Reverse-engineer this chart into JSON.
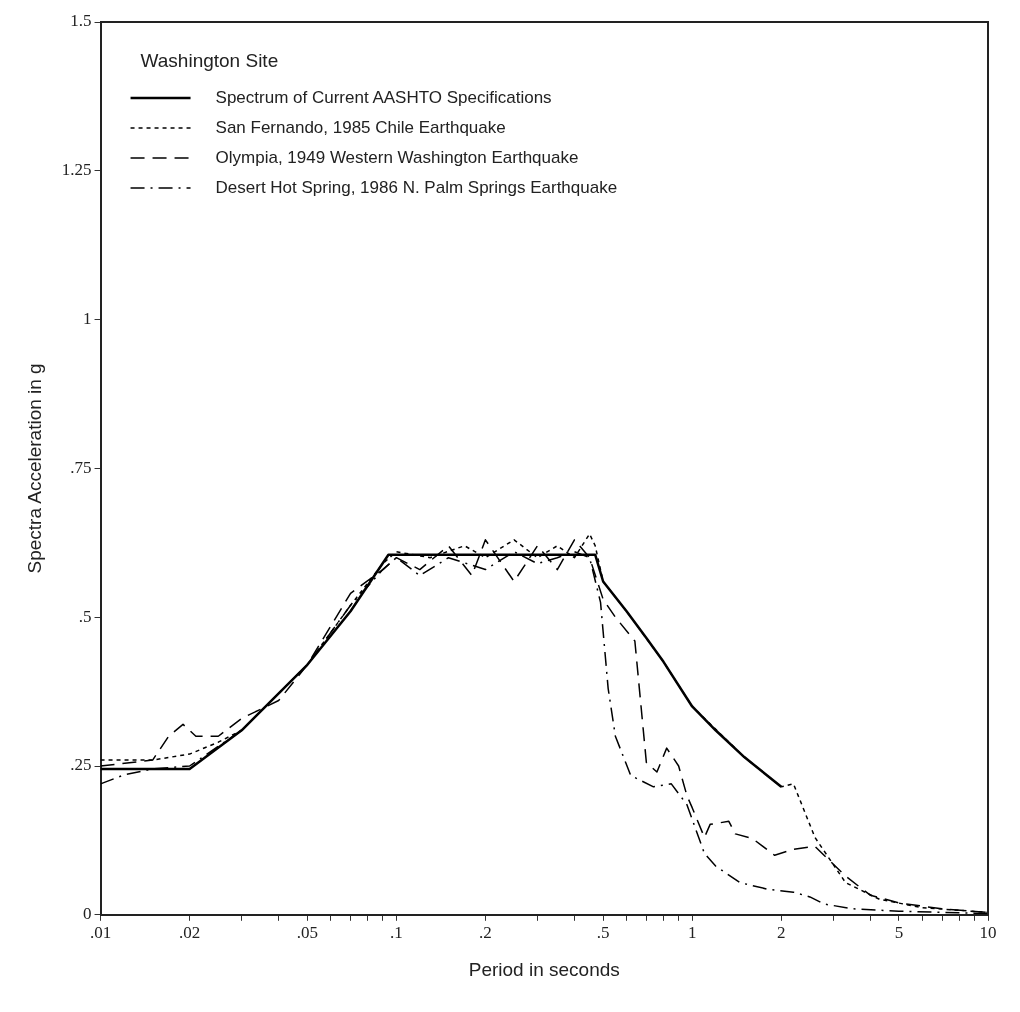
{
  "chart_data": {
    "type": "line",
    "xlabel": "Period in seconds",
    "ylabel": "Spectra Acceleration in g",
    "legend_title": "Washington Site",
    "legend": "top left",
    "log": "x",
    "grid": false,
    "marker": "none",
    "xlim": [
      0.01,
      10
    ],
    "ylim": [
      0,
      1.5
    ],
    "xticks": [
      {
        "value": 0.01,
        "label": ".01"
      },
      {
        "value": 0.02,
        "label": ".02"
      },
      {
        "value": 0.03,
        "label": null
      },
      {
        "value": 0.04,
        "label": null
      },
      {
        "value": 0.05,
        "label": ".05"
      },
      {
        "value": 0.06,
        "label": null
      },
      {
        "value": 0.07,
        "label": null
      },
      {
        "value": 0.08,
        "label": null
      },
      {
        "value": 0.09,
        "label": null
      },
      {
        "value": 0.1,
        "label": ".1"
      },
      {
        "value": 0.2,
        "label": ".2"
      },
      {
        "value": 0.3,
        "label": null
      },
      {
        "value": 0.4,
        "label": null
      },
      {
        "value": 0.5,
        "label": ".5"
      },
      {
        "value": 0.6,
        "label": null
      },
      {
        "value": 0.7,
        "label": null
      },
      {
        "value": 0.8,
        "label": null
      },
      {
        "value": 0.9,
        "label": null
      },
      {
        "value": 1,
        "label": "1"
      },
      {
        "value": 2,
        "label": "2"
      },
      {
        "value": 3,
        "label": null
      },
      {
        "value": 4,
        "label": null
      },
      {
        "value": 5,
        "label": "5"
      },
      {
        "value": 6,
        "label": null
      },
      {
        "value": 7,
        "label": null
      },
      {
        "value": 8,
        "label": null
      },
      {
        "value": 9,
        "label": null
      },
      {
        "value": 10,
        "label": "10"
      }
    ],
    "yticks": [
      0,
      {
        "value": 0.25,
        "label": ".25"
      },
      {
        "value": 0.5,
        "label": ".5"
      },
      {
        "value": 0.75,
        "label": ".75"
      },
      1,
      1.25,
      1.5
    ],
    "series": [
      {
        "name": "Spectrum of Current AASHTO Specifications",
        "color": "#000000",
        "line_style": "solid",
        "x": [
          0.01,
          0.02,
          0.03,
          0.05,
          0.07,
          0.094,
          0.47,
          0.5,
          0.6,
          0.7,
          0.8,
          1,
          1.2,
          1.5,
          2
        ],
        "values": [
          0.245,
          0.245,
          0.31,
          0.42,
          0.51,
          0.605,
          0.605,
          0.56,
          0.51,
          0.465,
          0.425,
          0.35,
          0.31,
          0.265,
          0.215
        ]
      },
      {
        "name": "San Fernando, 1985 Chile Earthquake",
        "color": "#000000",
        "line_style": "dotted",
        "x": [
          0.01,
          0.015,
          0.02,
          0.025,
          0.03,
          0.05,
          0.07,
          0.09,
          0.1,
          0.13,
          0.17,
          0.2,
          0.25,
          0.3,
          0.35,
          0.4,
          0.45,
          0.47,
          0.5,
          0.6,
          0.8,
          1,
          1.5,
          2,
          2.2,
          2.6,
          3.3,
          4.3,
          6,
          10
        ],
        "values": [
          0.26,
          0.26,
          0.27,
          0.29,
          0.31,
          0.42,
          0.52,
          0.59,
          0.61,
          0.6,
          0.62,
          0.6,
          0.63,
          0.6,
          0.62,
          0.6,
          0.64,
          0.62,
          0.56,
          0.51,
          0.425,
          0.35,
          0.265,
          0.215,
          0.22,
          0.13,
          0.054,
          0.026,
          0.012,
          0.004
        ]
      },
      {
        "name": "Olympia, 1949 Western Washington Earthquake",
        "color": "#000000",
        "line_style": "dashed",
        "x": [
          0.01,
          0.015,
          0.017,
          0.019,
          0.021,
          0.025,
          0.03,
          0.04,
          0.05,
          0.07,
          0.09,
          0.1,
          0.12,
          0.15,
          0.18,
          0.2,
          0.22,
          0.25,
          0.3,
          0.35,
          0.4,
          0.45,
          0.5,
          0.55,
          0.64,
          0.7,
          0.76,
          0.82,
          0.9,
          0.96,
          1,
          1.1,
          1.15,
          1.33,
          1.4,
          1.6,
          1.9,
          2.2,
          2.6,
          2.9,
          3.3,
          4,
          5,
          7,
          10
        ],
        "values": [
          0.25,
          0.26,
          0.3,
          0.32,
          0.3,
          0.3,
          0.33,
          0.36,
          0.42,
          0.54,
          0.58,
          0.6,
          0.58,
          0.62,
          0.57,
          0.63,
          0.6,
          0.56,
          0.62,
          0.58,
          0.63,
          0.6,
          0.53,
          0.5,
          0.46,
          0.256,
          0.24,
          0.28,
          0.25,
          0.2,
          0.18,
          0.13,
          0.152,
          0.157,
          0.136,
          0.128,
          0.1,
          0.11,
          0.115,
          0.092,
          0.065,
          0.033,
          0.02,
          0.01,
          0.004
        ]
      },
      {
        "name": "Desert Hot Spring, 1986 N. Palm Springs Earthquake",
        "color": "#000000",
        "line_style": "dashdot",
        "x": [
          0.01,
          0.012,
          0.015,
          0.02,
          0.03,
          0.05,
          0.07,
          0.09,
          0.1,
          0.12,
          0.15,
          0.2,
          0.25,
          0.3,
          0.35,
          0.4,
          0.45,
          0.49,
          0.52,
          0.55,
          0.62,
          0.74,
          0.85,
          0.96,
          1.1,
          1.2,
          1.45,
          1.6,
          1.8,
          2.2,
          2.5,
          2.8,
          3.5,
          5,
          10
        ],
        "values": [
          0.22,
          0.235,
          0.245,
          0.25,
          0.31,
          0.42,
          0.52,
          0.58,
          0.6,
          0.57,
          0.6,
          0.58,
          0.61,
          0.59,
          0.6,
          0.61,
          0.6,
          0.525,
          0.38,
          0.3,
          0.234,
          0.215,
          0.22,
          0.185,
          0.103,
          0.082,
          0.054,
          0.049,
          0.043,
          0.038,
          0.03,
          0.018,
          0.01,
          0.006,
          0.002
        ]
      }
    ]
  }
}
